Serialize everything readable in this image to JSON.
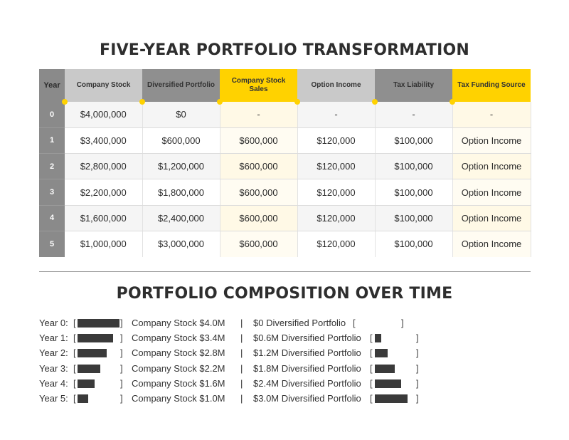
{
  "title": "FIVE-YEAR PORTFOLIO TRANSFORMATION",
  "table": {
    "headers": [
      {
        "label": "Year",
        "style": "year"
      },
      {
        "label": "Company Stock",
        "style": "light"
      },
      {
        "label": "Diversified Portfolio",
        "style": "dark"
      },
      {
        "label": "Company Stock Sales",
        "style": "yellow"
      },
      {
        "label": "Option Income",
        "style": "light"
      },
      {
        "label": "Tax Liability",
        "style": "dark"
      },
      {
        "label": "Tax Funding Source",
        "style": "yellow"
      }
    ],
    "rows": [
      [
        "0",
        "$4,000,000",
        "$0",
        "-",
        "-",
        "-",
        "-"
      ],
      [
        "1",
        "$3,400,000",
        "$600,000",
        "$600,000",
        "$120,000",
        "$100,000",
        "Option Income"
      ],
      [
        "2",
        "$2,800,000",
        "$1,200,000",
        "$600,000",
        "$120,000",
        "$100,000",
        "Option Income"
      ],
      [
        "3",
        "$2,200,000",
        "$1,800,000",
        "$600,000",
        "$120,000",
        "$100,000",
        "Option Income"
      ],
      [
        "4",
        "$1,600,000",
        "$2,400,000",
        "$600,000",
        "$120,000",
        "$100,000",
        "Option Income"
      ],
      [
        "5",
        "$1,000,000",
        "$3,000,000",
        "$600,000",
        "$120,000",
        "$100,000",
        "Option Income"
      ]
    ]
  },
  "composition": {
    "title": "PORTFOLIO COMPOSITION OVER TIME",
    "separator": "|",
    "rows": [
      {
        "label": "Year 0:",
        "stock_text": "Company Stock $4.0M",
        "div_text": "$0 Diversified Portfolio",
        "stock_m": 4.0,
        "div_m": 0.0
      },
      {
        "label": "Year 1:",
        "stock_text": "Company Stock $3.4M",
        "div_text": "$0.6M Diversified Portfolio",
        "stock_m": 3.4,
        "div_m": 0.6
      },
      {
        "label": "Year 2:",
        "stock_text": "Company Stock $2.8M",
        "div_text": "$1.2M Diversified Portfolio",
        "stock_m": 2.8,
        "div_m": 1.2
      },
      {
        "label": "Year 3:",
        "stock_text": "Company Stock $2.2M",
        "div_text": "$1.8M Diversified Portfolio",
        "stock_m": 2.2,
        "div_m": 1.8
      },
      {
        "label": "Year 4:",
        "stock_text": "Company Stock $1.6M",
        "div_text": "$2.4M Diversified Portfolio",
        "stock_m": 1.6,
        "div_m": 2.4
      },
      {
        "label": "Year 5:",
        "stock_text": "Company Stock $1.0M",
        "div_text": "$3.0M Diversified Portfolio",
        "stock_m": 1.0,
        "div_m": 3.0
      }
    ]
  },
  "colors": {
    "accent": "#ffd200",
    "header_gray": "#8a8a8a",
    "bar": "#3a3a3a"
  }
}
